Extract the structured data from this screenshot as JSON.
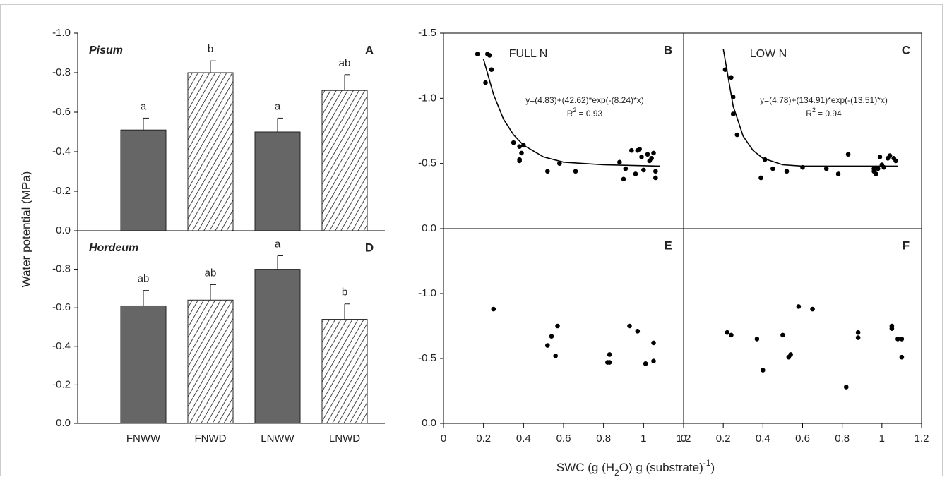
{
  "y_label": "Water potential (MPa)",
  "x_label": [
    "SWC (g (H",
    "2",
    "O) g (substrate)",
    "-1",
    ")"
  ],
  "chart_data": [
    {
      "type": "bar",
      "species": "Pisum",
      "panel": "A",
      "values": [
        -0.51,
        -0.8,
        -0.5,
        -0.71
      ],
      "errors": [
        0.06,
        0.06,
        0.07,
        0.08
      ],
      "letters": [
        "a",
        "b",
        "a",
        "ab"
      ],
      "fills": [
        "solid",
        "hatched",
        "solid",
        "hatched"
      ],
      "color": "#666666",
      "ylim": [
        0,
        -1
      ],
      "yticks": [
        {
          "value": -1,
          "label": "-1.0"
        },
        -0.8,
        -0.6,
        -0.4,
        -0.2,
        {
          "value": 0,
          "label": "0.0"
        }
      ]
    },
    {
      "type": "scatter",
      "panel": "B",
      "title": "FULL N",
      "color": "#000000",
      "x": [
        0.17,
        0.22,
        0.23,
        0.24,
        0.21,
        0.35,
        0.38,
        0.38,
        0.38,
        0.39,
        0.4,
        0.52,
        0.58,
        0.66,
        0.88,
        0.9,
        0.91,
        0.94,
        0.96,
        0.97,
        0.98,
        0.99,
        1.0,
        1.02,
        1.03,
        1.05,
        1.06,
        1.06,
        1.04
      ],
      "values": [
        -1.34,
        -1.34,
        -1.33,
        -1.22,
        -1.12,
        -0.66,
        -0.63,
        -0.53,
        -0.52,
        -0.58,
        -0.64,
        -0.44,
        -0.5,
        -0.44,
        -0.51,
        -0.38,
        -0.46,
        -0.6,
        -0.42,
        -0.6,
        -0.61,
        -0.55,
        -0.45,
        -0.57,
        -0.52,
        -0.58,
        -0.44,
        -0.39,
        -0.54
      ],
      "xlim": [
        0,
        1.2
      ],
      "ylim": [
        0,
        -1.5
      ],
      "yticks": [
        -1.5,
        {
          "value": -1,
          "label": "-1.0"
        },
        -0.5,
        {
          "value": 0,
          "label": "0.0"
        }
      ],
      "fit": {
        "equation": "y=(4.83)+(42.62)*exp(-(8.24)*x)",
        "r2": [
          "R",
          "2",
          "= 0.93"
        ],
        "x": [
          0.2,
          0.25,
          0.3,
          0.35,
          0.4,
          0.5,
          0.6,
          0.8,
          1.08
        ],
        "values": [
          -1.3,
          -1.03,
          -0.84,
          -0.72,
          -0.64,
          -0.55,
          -0.51,
          -0.49,
          -0.48
        ]
      }
    },
    {
      "type": "scatter",
      "panel": "C",
      "title": "LOW N",
      "color": "#000000",
      "x": [
        0.21,
        0.24,
        0.25,
        0.25,
        0.27,
        0.39,
        0.41,
        0.45,
        0.52,
        0.6,
        0.72,
        0.78,
        0.83,
        0.96,
        0.97,
        0.98,
        0.99,
        1.0,
        1.01,
        1.03,
        1.04,
        1.06,
        1.07,
        0.96
      ],
      "values": [
        -1.22,
        -1.16,
        -1.01,
        -0.88,
        -0.72,
        -0.39,
        -0.53,
        -0.46,
        -0.44,
        -0.47,
        -0.46,
        -0.42,
        -0.57,
        -0.44,
        -0.42,
        -0.46,
        -0.55,
        -0.49,
        -0.47,
        -0.54,
        -0.56,
        -0.54,
        -0.52,
        -0.46
      ],
      "xlim": [
        0,
        1.2
      ],
      "ylim": [
        0,
        -1.5
      ],
      "fit": {
        "equation": "y=(4.78)+(134.91)*exp(-(13.51)*x)",
        "r2": [
          "R",
          "2",
          "= 0.94"
        ],
        "x": [
          0.2,
          0.25,
          0.3,
          0.35,
          0.4,
          0.5,
          0.6,
          1.08
        ],
        "values": [
          -1.38,
          -0.94,
          -0.71,
          -0.6,
          -0.54,
          -0.49,
          -0.48,
          -0.48
        ]
      }
    },
    {
      "type": "bar",
      "species": "Hordeum",
      "panel": "D",
      "categories": [
        "FNWW",
        "FNWD",
        "LNWW",
        "LNWD"
      ],
      "values": [
        -0.61,
        -0.64,
        -0.8,
        -0.54
      ],
      "errors": [
        0.08,
        0.08,
        0.07,
        0.08
      ],
      "letters": [
        "ab",
        "ab",
        "a",
        "b"
      ],
      "fills": [
        "solid",
        "hatched",
        "solid",
        "hatched"
      ],
      "color": "#666666",
      "ylim": [
        0,
        -1
      ],
      "yticks": [
        -0.8,
        -0.6,
        -0.4,
        -0.2,
        {
          "value": 0,
          "label": "0.0"
        }
      ]
    },
    {
      "type": "scatter",
      "panel": "E",
      "color": "#000000",
      "x": [
        0.25,
        0.57,
        0.54,
        0.52,
        0.56,
        0.83,
        0.82,
        0.83,
        0.93,
        0.97,
        1.05,
        1.05,
        1.01
      ],
      "values": [
        -0.88,
        -0.75,
        -0.67,
        -0.6,
        -0.52,
        -0.53,
        -0.47,
        -0.47,
        -0.75,
        -0.71,
        -0.62,
        -0.48,
        -0.46
      ],
      "xlim": [
        0,
        1.2
      ],
      "ylim": [
        0,
        -1.5
      ],
      "xticks": [
        0,
        0.2,
        0.4,
        0.6,
        0.8,
        1,
        1.2
      ],
      "yticks": [
        {
          "value": -1,
          "label": "-1.0"
        },
        -0.5,
        {
          "value": 0,
          "label": "0.0"
        }
      ]
    },
    {
      "type": "scatter",
      "panel": "F",
      "color": "#000000",
      "x": [
        0.22,
        0.24,
        0.37,
        0.4,
        0.5,
        0.53,
        0.54,
        0.58,
        0.65,
        0.82,
        0.88,
        0.88,
        1.05,
        1.05,
        1.08,
        1.1,
        1.1
      ],
      "values": [
        -0.7,
        -0.68,
        -0.65,
        -0.41,
        -0.68,
        -0.51,
        -0.53,
        -0.9,
        -0.88,
        -0.28,
        -0.7,
        -0.66,
        -0.75,
        -0.73,
        -0.65,
        -0.65,
        -0.51
      ],
      "xlim": [
        0,
        1.2
      ],
      "ylim": [
        0,
        -1.5
      ],
      "xticks": [
        0,
        0.2,
        0.4,
        0.6,
        0.8,
        1,
        1.2
      ]
    }
  ]
}
